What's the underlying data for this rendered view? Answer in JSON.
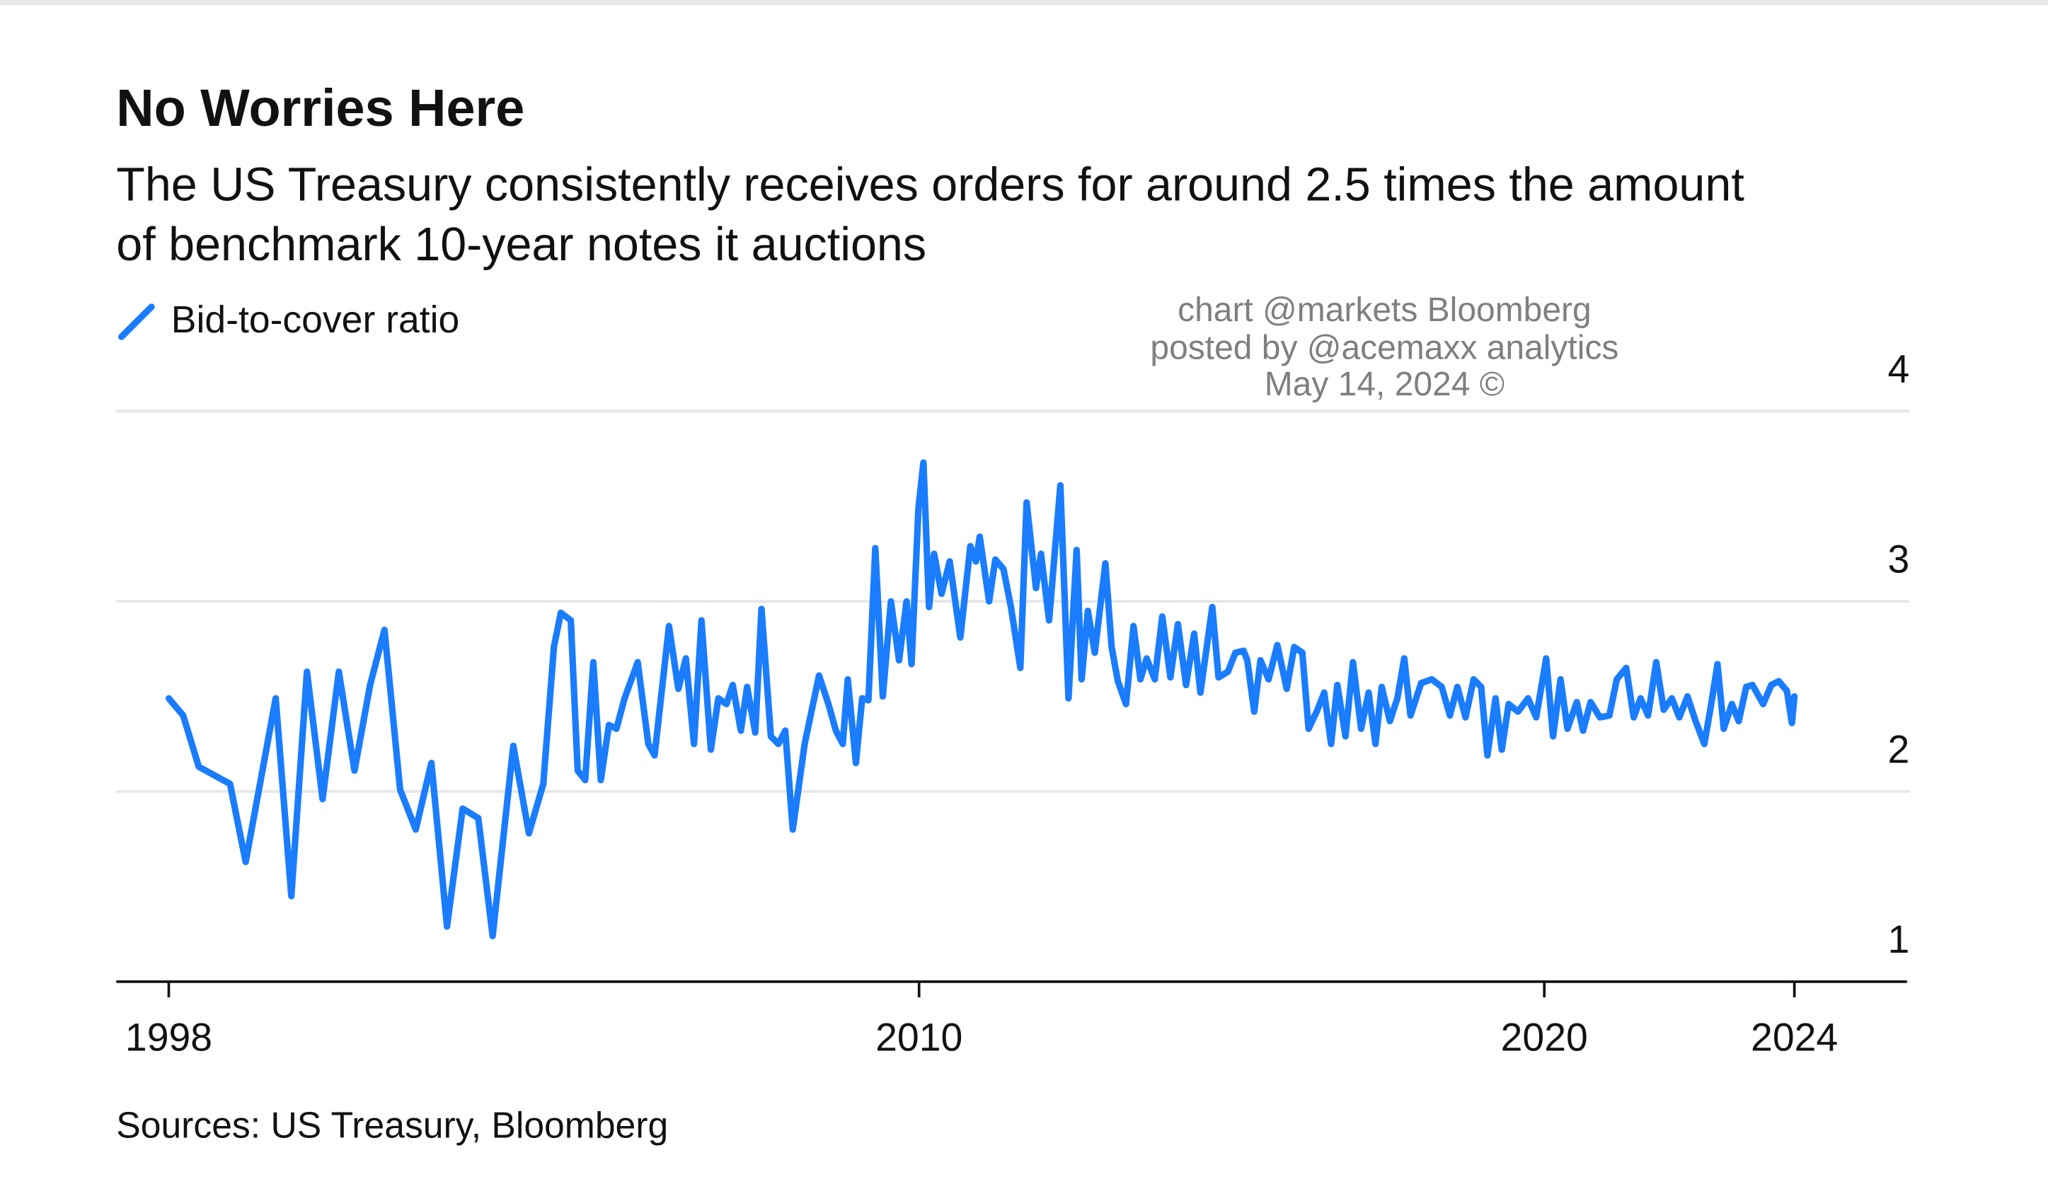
{
  "chart_data": {
    "type": "line",
    "title": "No Worries Here",
    "subtitle": [
      "The US Treasury consistently receives orders for around 2.5 times the amount",
      "of benchmark 10-year notes it auctions"
    ],
    "annotations": [
      "chart @markets Bloomberg",
      "posted by @acemaxx analytics",
      "May 14, 2024 ©"
    ],
    "source": "Sources: US Treasury, Bloomberg",
    "legend": "top-left",
    "grid": true,
    "xlim": [
      1997.16,
      2025.8
    ],
    "xticks": [
      1998,
      2010,
      2020,
      2024
    ],
    "ylim": [
      1,
      4
    ],
    "yticks": [
      1,
      2,
      3,
      4
    ],
    "series": [
      {
        "name": "Bid-to-cover ratio",
        "color": "#1a7cff",
        "x": [
          1998.0,
          1998.23,
          1998.48,
          1998.98,
          1999.23,
          1999.71,
          1999.96,
          2000.21,
          2000.46,
          2000.72,
          2000.97,
          2001.22,
          2001.45,
          2001.7,
          2001.95,
          2002.2,
          2002.45,
          2002.7,
          2002.95,
          2003.18,
          2003.51,
          2003.76,
          2003.99,
          2004.16,
          2004.27,
          2004.43,
          2004.54,
          2004.66,
          2004.79,
          2004.91,
          2005.04,
          2005.16,
          2005.29,
          2005.5,
          2005.67,
          2005.77,
          2006.0,
          2006.15,
          2006.27,
          2006.4,
          2006.52,
          2006.67,
          2006.79,
          2006.92,
          2007.02,
          2007.15,
          2007.25,
          2007.38,
          2007.48,
          2007.63,
          2007.75,
          2007.86,
          2007.98,
          2008.17,
          2008.4,
          2008.55,
          2008.67,
          2008.78,
          2008.86,
          2008.99,
          2009.09,
          2009.19,
          2009.3,
          2009.42,
          2009.55,
          2009.68,
          2009.8,
          2009.88,
          2009.99,
          2010.07,
          2010.16,
          2010.24,
          2010.36,
          2010.49,
          2010.66,
          2010.82,
          2010.91,
          2010.97,
          2011.12,
          2011.22,
          2011.35,
          2011.47,
          2011.62,
          2011.72,
          2011.87,
          2011.95,
          2012.08,
          2012.26,
          2012.39,
          2012.52,
          2012.6,
          2012.7,
          2012.81,
          2012.98,
          2013.08,
          2013.18,
          2013.31,
          2013.43,
          2013.54,
          2013.64,
          2013.77,
          2013.89,
          2014.02,
          2014.14,
          2014.27,
          2014.4,
          2014.5,
          2014.69,
          2014.79,
          2014.94,
          2015.06,
          2015.19,
          2015.25,
          2015.36,
          2015.46,
          2015.59,
          2015.73,
          2015.88,
          2016.0,
          2016.13,
          2016.23,
          2016.36,
          2016.48,
          2016.59,
          2016.69,
          2016.82,
          2016.94,
          2017.07,
          2017.19,
          2017.3,
          2017.4,
          2017.53,
          2017.65,
          2017.76,
          2017.86,
          2018.03,
          2018.2,
          2018.36,
          2018.49,
          2018.61,
          2018.74,
          2018.87,
          2018.99,
          2019.09,
          2019.22,
          2019.32,
          2019.43,
          2019.58,
          2019.74,
          2019.87,
          2020.03,
          2020.14,
          2020.26,
          2020.37,
          2020.52,
          2020.62,
          2020.74,
          2020.89,
          2021.04,
          2021.16,
          2021.31,
          2021.43,
          2021.54,
          2021.66,
          2021.79,
          2021.91,
          2022.04,
          2022.16,
          2022.29,
          2022.42,
          2022.56,
          2022.67,
          2022.77,
          2022.87,
          2023.0,
          2023.11,
          2023.23,
          2023.33,
          2023.5,
          2023.63,
          2023.75,
          2023.88,
          2023.96,
          2024.0
        ],
        "values": [
          2.49,
          2.4,
          2.13,
          2.04,
          1.63,
          2.49,
          1.45,
          2.63,
          1.96,
          2.63,
          2.11,
          2.56,
          2.85,
          2.01,
          1.8,
          2.15,
          1.29,
          1.91,
          1.86,
          1.24,
          2.24,
          1.78,
          2.04,
          2.76,
          2.94,
          2.9,
          2.11,
          2.06,
          2.68,
          2.06,
          2.35,
          2.33,
          2.49,
          2.68,
          2.25,
          2.19,
          2.87,
          2.54,
          2.7,
          2.25,
          2.9,
          2.22,
          2.49,
          2.46,
          2.56,
          2.32,
          2.55,
          2.31,
          2.96,
          2.29,
          2.25,
          2.32,
          1.8,
          2.25,
          2.61,
          2.46,
          2.32,
          2.25,
          2.59,
          2.15,
          2.49,
          2.48,
          3.28,
          2.5,
          3.0,
          2.69,
          3.0,
          2.67,
          3.49,
          3.73,
          2.97,
          3.25,
          3.04,
          3.21,
          2.81,
          3.29,
          3.21,
          3.34,
          3.0,
          3.22,
          3.17,
          2.97,
          2.65,
          3.52,
          3.07,
          3.25,
          2.9,
          3.61,
          2.49,
          3.27,
          2.59,
          2.95,
          2.73,
          3.2,
          2.76,
          2.58,
          2.46,
          2.87,
          2.59,
          2.7,
          2.59,
          2.92,
          2.6,
          2.88,
          2.56,
          2.83,
          2.52,
          2.97,
          2.6,
          2.63,
          2.73,
          2.74,
          2.69,
          2.42,
          2.69,
          2.59,
          2.77,
          2.54,
          2.76,
          2.73,
          2.33,
          2.42,
          2.52,
          2.25,
          2.56,
          2.29,
          2.68,
          2.33,
          2.52,
          2.25,
          2.55,
          2.37,
          2.49,
          2.7,
          2.4,
          2.57,
          2.59,
          2.55,
          2.4,
          2.55,
          2.39,
          2.59,
          2.55,
          2.19,
          2.49,
          2.22,
          2.46,
          2.42,
          2.49,
          2.39,
          2.7,
          2.29,
          2.59,
          2.33,
          2.47,
          2.32,
          2.47,
          2.39,
          2.4,
          2.59,
          2.65,
          2.39,
          2.49,
          2.4,
          2.68,
          2.43,
          2.49,
          2.39,
          2.5,
          2.37,
          2.25,
          2.46,
          2.67,
          2.33,
          2.46,
          2.37,
          2.55,
          2.56,
          2.46,
          2.56,
          2.58,
          2.53,
          2.36,
          2.5
        ]
      }
    ]
  }
}
